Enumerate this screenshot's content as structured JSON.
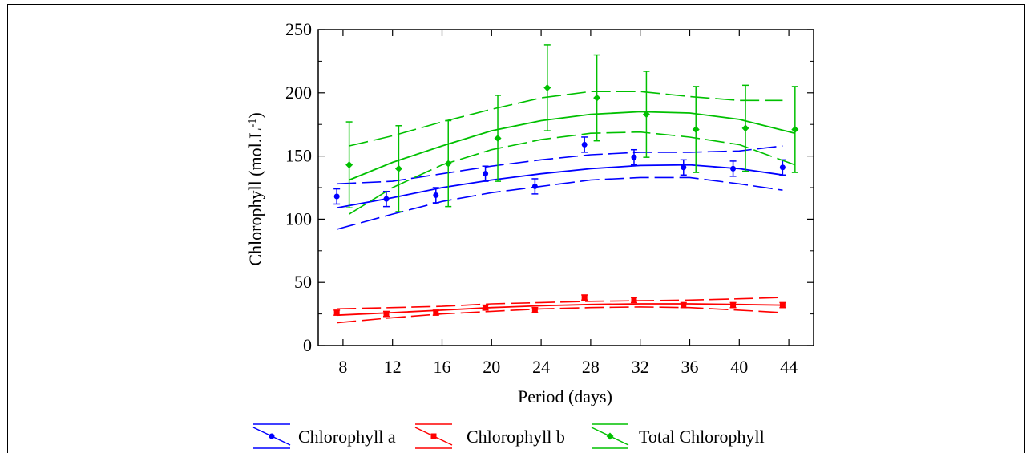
{
  "chart_data": {
    "type": "scatter",
    "xlabel": "Period (days)",
    "ylabel": {
      "main": "Chlorophyll (mol.L",
      "sup": "-1",
      "end": ")"
    },
    "xticks": [
      8,
      12,
      16,
      20,
      24,
      28,
      32,
      36,
      40,
      44
    ],
    "yticks": [
      0,
      50,
      100,
      150,
      200,
      250
    ],
    "xlim": [
      6,
      46
    ],
    "ylim": [
      0,
      250
    ],
    "grid": false,
    "legend_position": "bottom",
    "series": [
      {
        "name": "Chlorophyll a",
        "color": "#0000ff",
        "marker": "circle",
        "x": [
          7.5,
          11.5,
          15.5,
          19.5,
          23.5,
          27.5,
          31.5,
          35.5,
          39.5,
          43.5
        ],
        "y": [
          118,
          116,
          119,
          136,
          126,
          159,
          149,
          141,
          140,
          141
        ],
        "err": [
          6,
          6,
          6,
          6,
          6,
          6,
          6,
          6,
          6,
          6
        ],
        "fit": [
          [
            7.5,
            109
          ],
          [
            12,
            117
          ],
          [
            16,
            125
          ],
          [
            20,
            131
          ],
          [
            24,
            136
          ],
          [
            28,
            140
          ],
          [
            32,
            142.5
          ],
          [
            36,
            143
          ],
          [
            40,
            140
          ],
          [
            43.5,
            135
          ]
        ],
        "ci_upper": [
          [
            7.5,
            128
          ],
          [
            12,
            130
          ],
          [
            16,
            136
          ],
          [
            20,
            142
          ],
          [
            24,
            147
          ],
          [
            28,
            151
          ],
          [
            32,
            153
          ],
          [
            36,
            153
          ],
          [
            40,
            154
          ],
          [
            43.5,
            158
          ]
        ],
        "ci_lower": [
          [
            7.5,
            92
          ],
          [
            12,
            104
          ],
          [
            16,
            114
          ],
          [
            20,
            121
          ],
          [
            24,
            126
          ],
          [
            28,
            131
          ],
          [
            32,
            133
          ],
          [
            36,
            133
          ],
          [
            40,
            128
          ],
          [
            43.5,
            123
          ]
        ]
      },
      {
        "name": "Chlorophyll b",
        "color": "#ff0000",
        "marker": "square",
        "x": [
          7.5,
          11.5,
          15.5,
          19.5,
          23.5,
          27.5,
          31.5,
          35.5,
          39.5,
          43.5
        ],
        "y": [
          26,
          25,
          26,
          30,
          28,
          38,
          36,
          32,
          32,
          32
        ],
        "err": [
          2,
          2,
          2,
          2,
          2,
          2,
          2,
          2,
          2,
          2
        ],
        "fit": [
          [
            7.5,
            24
          ],
          [
            12,
            26
          ],
          [
            16,
            28
          ],
          [
            20,
            30
          ],
          [
            24,
            31.5
          ],
          [
            28,
            32.5
          ],
          [
            32,
            33
          ],
          [
            36,
            33
          ],
          [
            40,
            32.5
          ],
          [
            43.5,
            32
          ]
        ],
        "ci_upper": [
          [
            7.5,
            29
          ],
          [
            12,
            30
          ],
          [
            16,
            31
          ],
          [
            20,
            33
          ],
          [
            24,
            34
          ],
          [
            28,
            35
          ],
          [
            32,
            35.5
          ],
          [
            36,
            36
          ],
          [
            40,
            37
          ],
          [
            43.5,
            38
          ]
        ],
        "ci_lower": [
          [
            7.5,
            18
          ],
          [
            12,
            22
          ],
          [
            16,
            25
          ],
          [
            20,
            27
          ],
          [
            24,
            29
          ],
          [
            28,
            30
          ],
          [
            32,
            30.5
          ],
          [
            36,
            30
          ],
          [
            40,
            28
          ],
          [
            43.5,
            26
          ]
        ]
      },
      {
        "name": "Total Chlorophyll",
        "color": "#00c000",
        "marker": "diamond",
        "x": [
          8.5,
          12.5,
          16.5,
          20.5,
          24.5,
          28.5,
          32.5,
          36.5,
          40.5,
          44.5
        ],
        "y": [
          143,
          140,
          144,
          164,
          204,
          196,
          183,
          171,
          172,
          171
        ],
        "err": [
          34,
          34,
          34,
          34,
          34,
          34,
          34,
          34,
          34,
          34
        ],
        "fit": [
          [
            8.5,
            131
          ],
          [
            12,
            145
          ],
          [
            16,
            158
          ],
          [
            20,
            170
          ],
          [
            24,
            178
          ],
          [
            28,
            183
          ],
          [
            32,
            185
          ],
          [
            36,
            184
          ],
          [
            40,
            179
          ],
          [
            44.5,
            168
          ]
        ],
        "ci_upper": [
          [
            8.5,
            158
          ],
          [
            12,
            166
          ],
          [
            16,
            177
          ],
          [
            20,
            187
          ],
          [
            24,
            196
          ],
          [
            28,
            201
          ],
          [
            32,
            201
          ],
          [
            36,
            197
          ],
          [
            40,
            194
          ],
          [
            43.5,
            194
          ]
        ],
        "ci_lower": [
          [
            8.5,
            104
          ],
          [
            12,
            125
          ],
          [
            16,
            143
          ],
          [
            20,
            155
          ],
          [
            24,
            163
          ],
          [
            28,
            168
          ],
          [
            32,
            169
          ],
          [
            36,
            165
          ],
          [
            40,
            159
          ],
          [
            44.5,
            143
          ]
        ]
      }
    ]
  }
}
